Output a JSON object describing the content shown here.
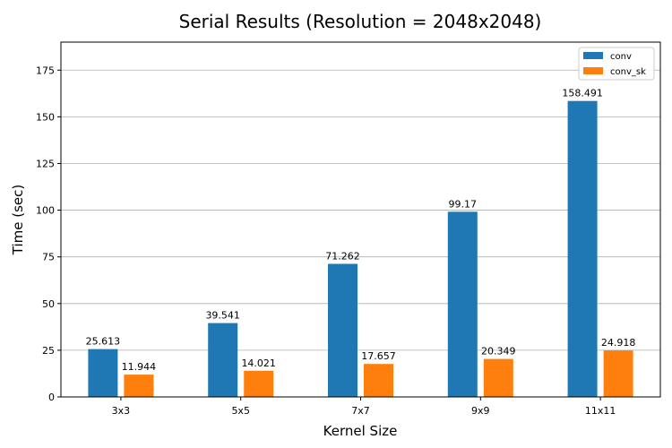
{
  "chart_data": {
    "type": "bar",
    "title": "Serial Results (Resolution = 2048x2048)",
    "xlabel": "Kernel Size",
    "ylabel": "Time (sec)",
    "categories": [
      "3x3",
      "5x5",
      "7x7",
      "9x9",
      "11x11"
    ],
    "series": [
      {
        "name": "conv",
        "color": "#1f77b4",
        "values": [
          25.613,
          39.541,
          71.262,
          99.17,
          158.491
        ],
        "labels": [
          "25.613",
          "39.541",
          "71.262",
          "99.17",
          "158.491"
        ]
      },
      {
        "name": "conv_sk",
        "color": "#ff7f0e",
        "values": [
          11.944,
          14.021,
          17.657,
          20.349,
          24.918
        ],
        "labels": [
          "11.944",
          "14.021",
          "17.657",
          "20.349",
          "24.918"
        ]
      }
    ],
    "ylim": [
      0,
      190
    ],
    "yticks": [
      0,
      25,
      50,
      75,
      100,
      125,
      150,
      175
    ],
    "grid": "y",
    "legend": "top-right"
  }
}
